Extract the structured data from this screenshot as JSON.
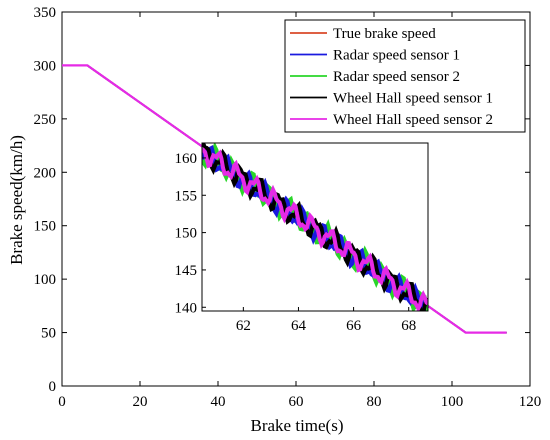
{
  "chart_data": [
    {
      "type": "line",
      "title": "",
      "xlabel": "Brake time(s)",
      "ylabel": "Brake speed(km/h)",
      "xlim": [
        0,
        120
      ],
      "ylim": [
        0,
        350
      ],
      "xticks": [
        0,
        20,
        40,
        60,
        80,
        100,
        120
      ],
      "yticks": [
        0,
        50,
        100,
        150,
        200,
        250,
        300,
        350
      ],
      "grid": false,
      "legend_position": "top-right",
      "series": [
        {
          "name": "True brake speed",
          "color": "#d94a2a",
          "x": [
            0,
            6.5,
            103.5,
            114
          ],
          "y": [
            300,
            300,
            50,
            50
          ]
        },
        {
          "name": "Radar speed sensor 1",
          "color": "#1a1adf",
          "x": [
            0,
            6.5,
            103.5,
            114
          ],
          "y": [
            300,
            300,
            50,
            50
          ]
        },
        {
          "name": "Radar speed sensor 2",
          "color": "#2ad62a",
          "x": [
            0,
            6.5,
            103.5,
            114
          ],
          "y": [
            300,
            300,
            50,
            50
          ]
        },
        {
          "name": "Wheel Hall speed sensor 1",
          "color": "#000000",
          "x": [
            0,
            6.5,
            103.5,
            114
          ],
          "y": [
            300,
            300,
            50,
            50
          ]
        },
        {
          "name": "Wheel Hall speed sensor 2",
          "color": "#e62ae6",
          "x": [
            0,
            6.5,
            103.5,
            114
          ],
          "y": [
            300,
            300,
            50,
            50
          ]
        }
      ]
    },
    {
      "type": "line",
      "title": "",
      "xlabel": "",
      "ylabel": "",
      "xlim": [
        60.5,
        68.7
      ],
      "ylim": [
        139.5,
        162
      ],
      "xticks": [
        62,
        64,
        66,
        68
      ],
      "yticks": [
        140,
        145,
        150,
        155,
        160
      ],
      "grid": false,
      "series": [
        {
          "name": "Radar speed sensor 2",
          "color": "#2ad62a",
          "x_range": [
            60.5,
            68.7
          ],
          "y_range": [
            161,
            140
          ],
          "noise_amplitude": 1.8
        },
        {
          "name": "Radar speed sensor 1",
          "color": "#1a1adf",
          "x_range": [
            60.5,
            68.7
          ],
          "y_range": [
            161,
            140
          ],
          "noise_amplitude": 1.6
        },
        {
          "name": "Wheel Hall speed sensor 1",
          "color": "#000000",
          "x_range": [
            60.5,
            68.7
          ],
          "y_range": [
            161,
            140
          ],
          "noise_amplitude": 1.7
        },
        {
          "name": "Wheel Hall speed sensor 2",
          "color": "#e62ae6",
          "x_range": [
            60.5,
            68.7
          ],
          "y_range": [
            161,
            140
          ],
          "noise_amplitude": 1.5
        }
      ]
    }
  ]
}
